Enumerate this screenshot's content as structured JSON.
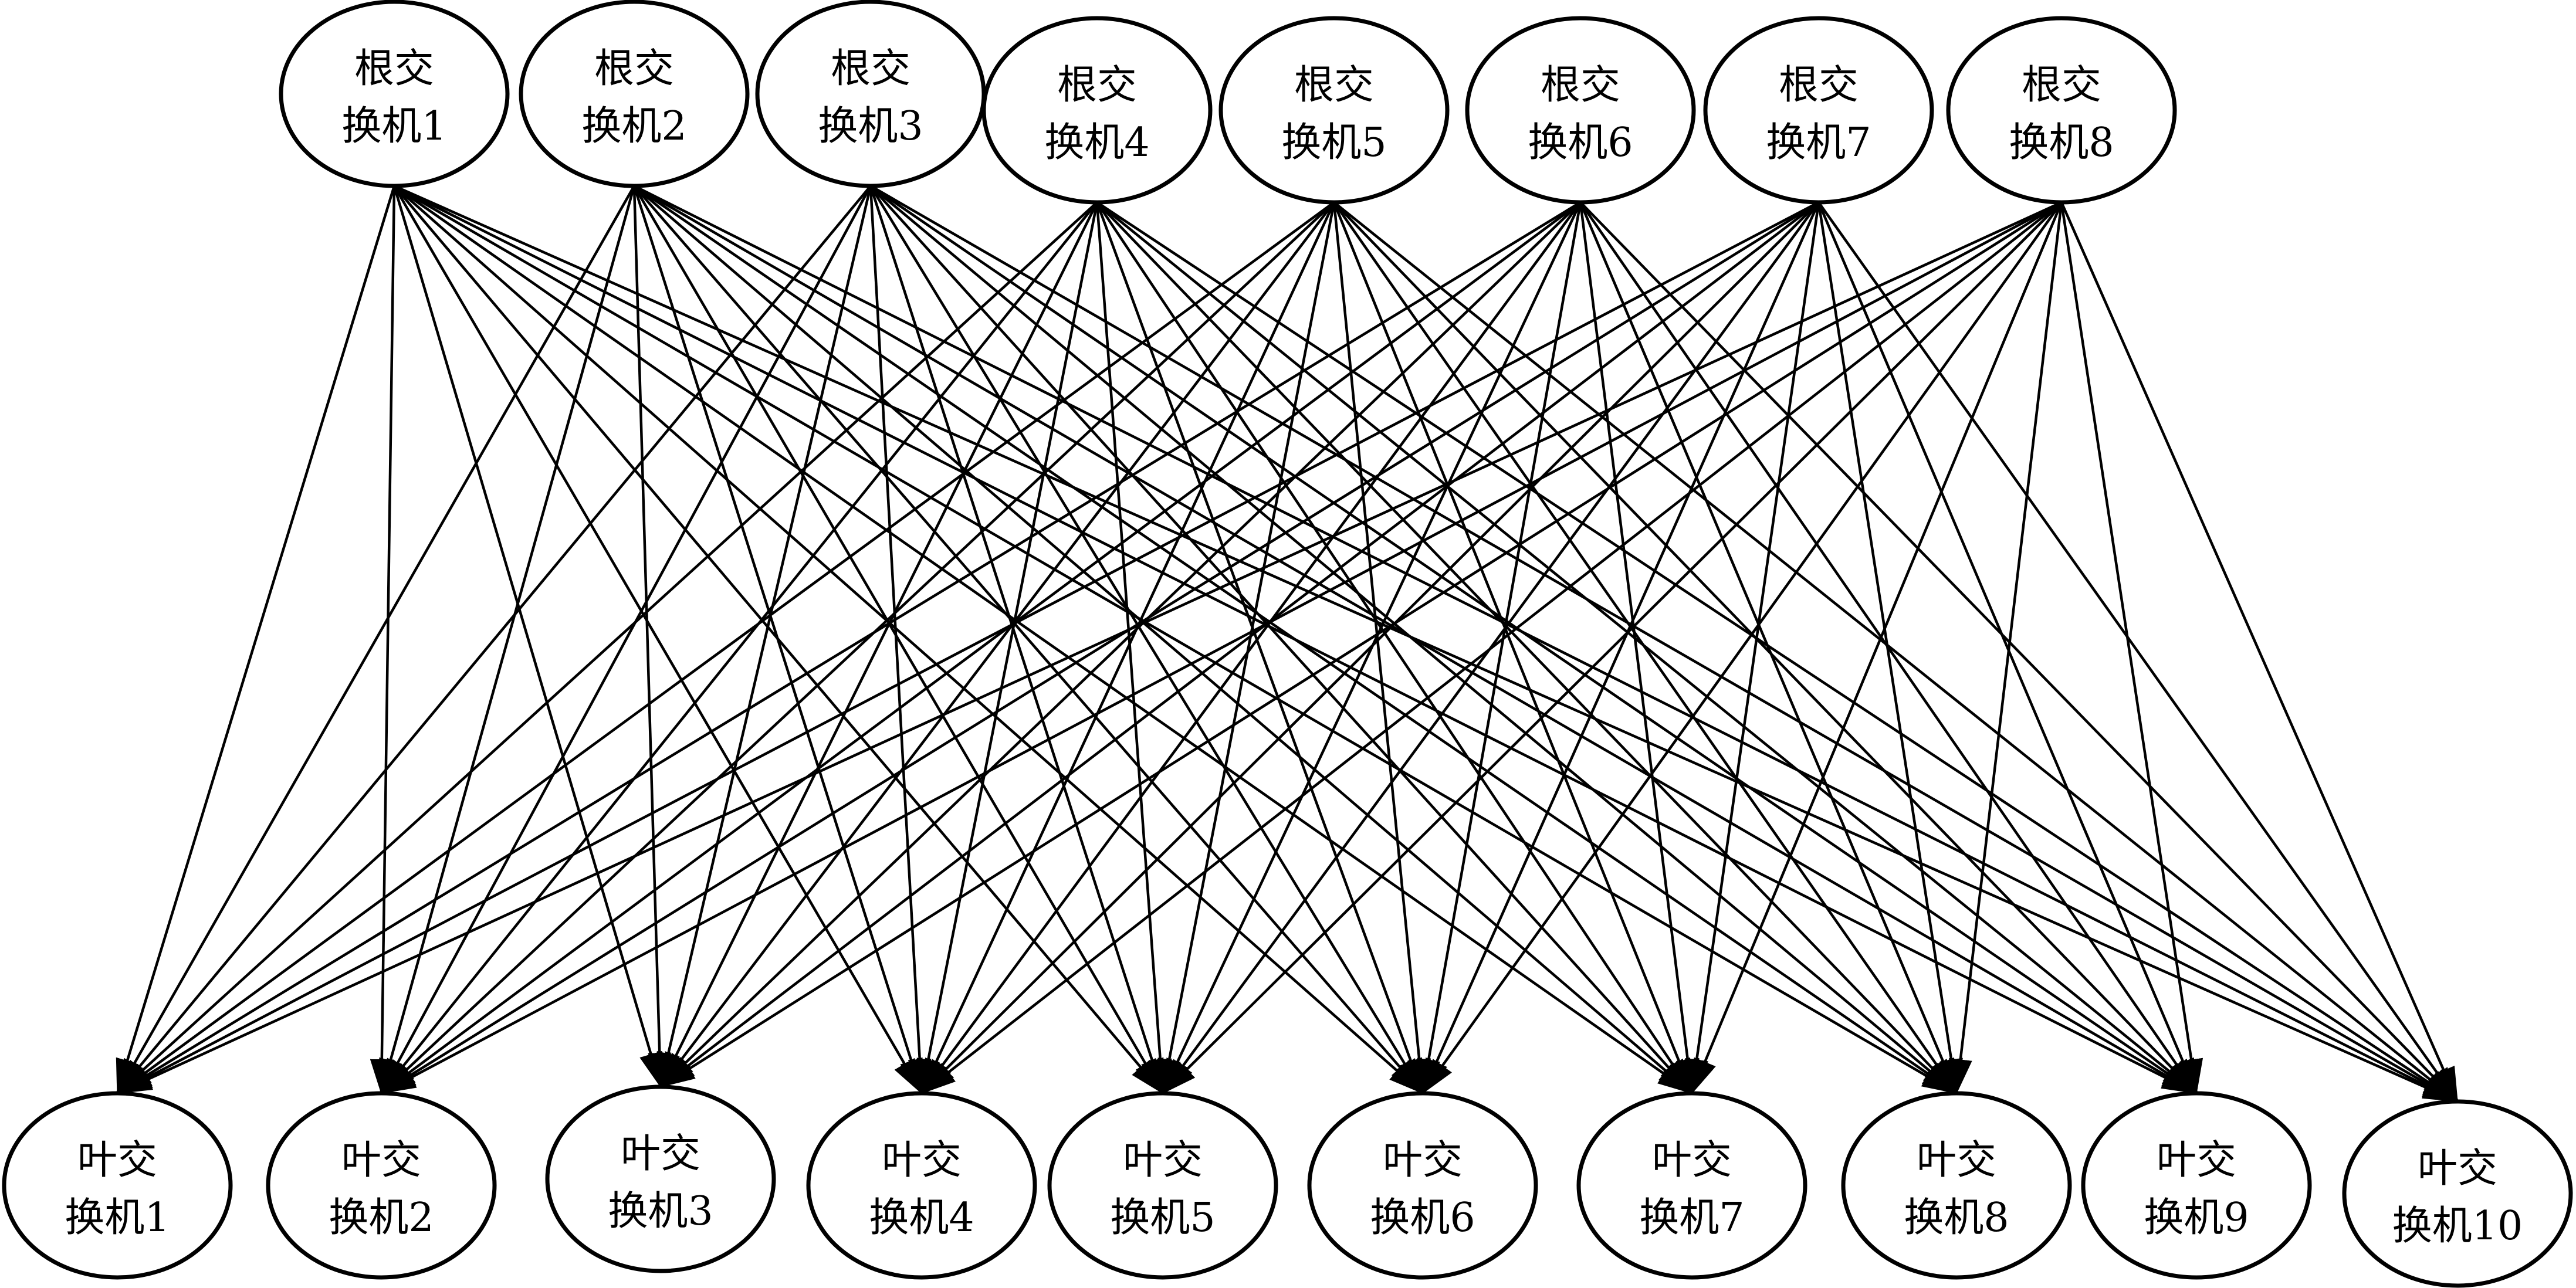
{
  "diagram": {
    "type": "bipartite-network",
    "root_switches": [
      {
        "line1": "根交",
        "line2": "换机1"
      },
      {
        "line1": "根交",
        "line2": "换机2"
      },
      {
        "line1": "根交",
        "line2": "换机3"
      },
      {
        "line1": "根交",
        "line2": "换机4"
      },
      {
        "line1": "根交",
        "line2": "换机5"
      },
      {
        "line1": "根交",
        "line2": "换机6"
      },
      {
        "line1": "根交",
        "line2": "换机7"
      },
      {
        "line1": "根交",
        "line2": "换机8"
      }
    ],
    "leaf_switches": [
      {
        "line1": "叶交",
        "line2": "换机1"
      },
      {
        "line1": "叶交",
        "line2": "换机2"
      },
      {
        "line1": "叶交",
        "line2": "换机3"
      },
      {
        "line1": "叶交",
        "line2": "换机4"
      },
      {
        "line1": "叶交",
        "line2": "换机5"
      },
      {
        "line1": "叶交",
        "line2": "换机6"
      },
      {
        "line1": "叶交",
        "line2": "换机7"
      },
      {
        "line1": "叶交",
        "line2": "换机8"
      },
      {
        "line1": "叶交",
        "line2": "换机9"
      },
      {
        "line1": "叶交",
        "line2": "换机10"
      }
    ],
    "edges": "every root switch connects to every leaf switch (directed root → leaf)",
    "stroke_color": "#000000",
    "fill_color": "#ffffff"
  }
}
